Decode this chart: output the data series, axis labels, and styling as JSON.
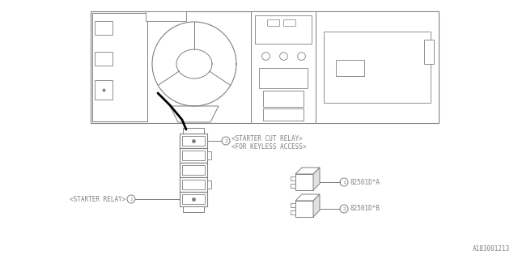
{
  "bg_color": "#ffffff",
  "line_color": "#7f7f7f",
  "text_color": "#7f7f7f",
  "black_color": "#000000",
  "part_number_1": "82501D*A",
  "part_number_2": "82501D*B",
  "label_starter_relay": "<STARTER RELAY>",
  "label_starter_cut": "<STARTER CUT RELAY>",
  "label_keyless": "<FOR KEYLESS ACCESS>",
  "diagram_id": "A183001213",
  "font_size_main": 5.5,
  "font_size_id": 5.5
}
